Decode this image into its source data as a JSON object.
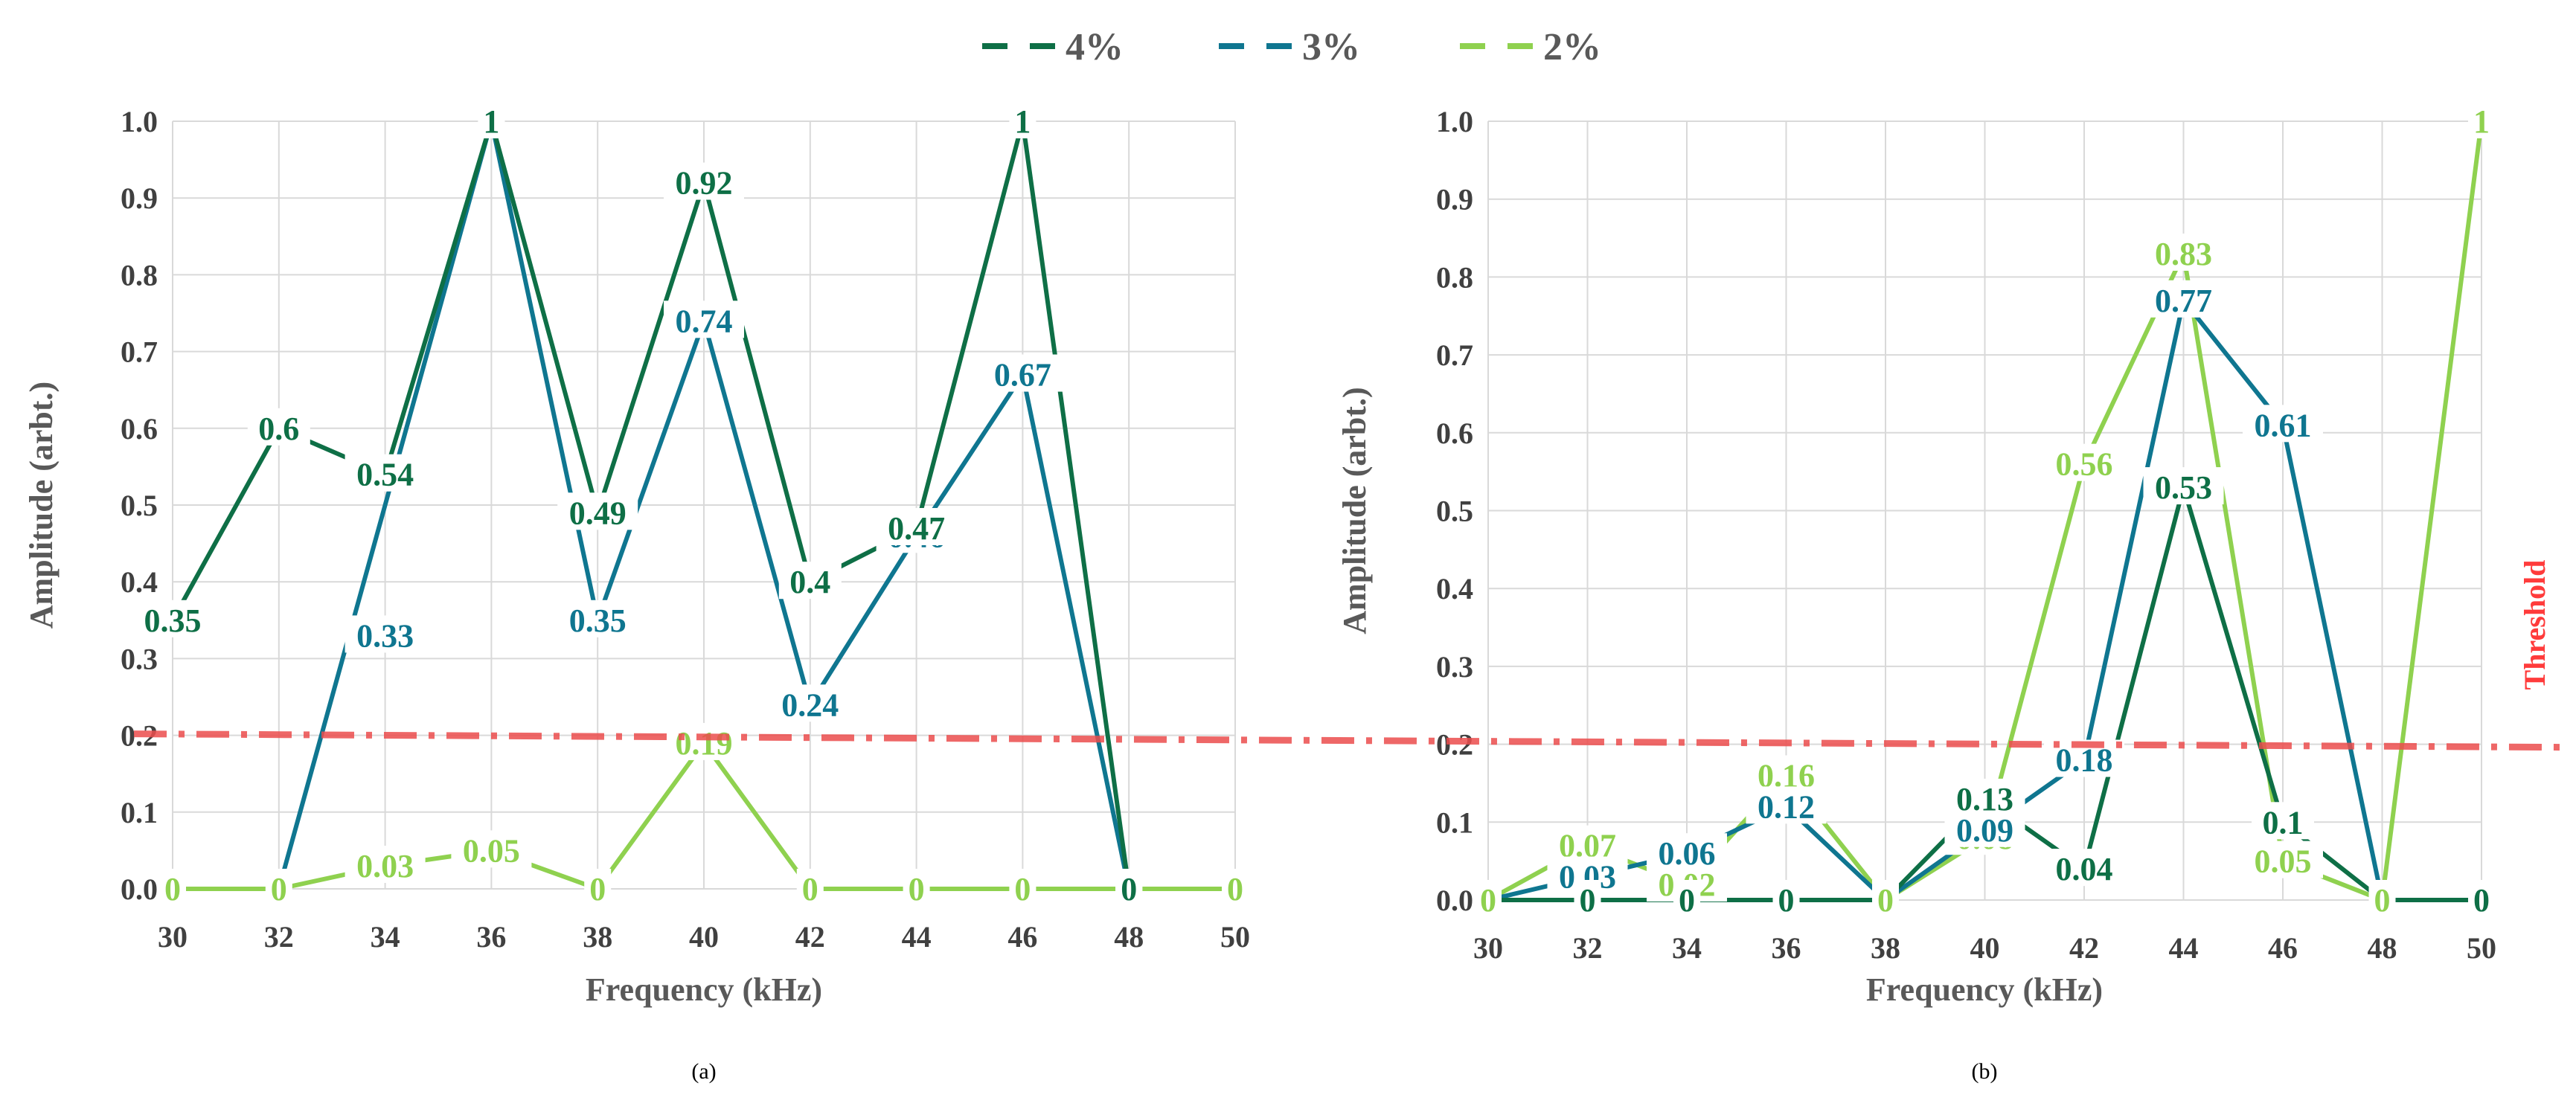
{
  "colors": {
    "s4": "#0e6f46",
    "s3": "#0f7690",
    "s2": "#8fd14f",
    "threshold": "#ec4d4d",
    "grid": "#d9d9d9"
  },
  "legend": [
    {
      "name": "4%",
      "color": "#0e6f46"
    },
    {
      "name": "3%",
      "color": "#0f7690"
    },
    {
      "name": "2%",
      "color": "#8fd14f"
    }
  ],
  "threshold": {
    "label": "Threshold",
    "value": 0.2
  },
  "chart_data": [
    {
      "type": "line",
      "panel_label": "(a)",
      "xlabel": "Frequency  (kHz)",
      "ylabel": "Amplitude  (arbt.)",
      "x_ticks": [
        "30",
        "32",
        "34",
        "36",
        "38",
        "40",
        "42",
        "44",
        "46",
        "48",
        "50"
      ],
      "y_ticks": [
        "0.0",
        "0.1",
        "0.2",
        "0.3",
        "0.4",
        "0.5",
        "0.6",
        "0.7",
        "0.8",
        "0.9",
        "1.0"
      ],
      "xlim": [
        30,
        50
      ],
      "ylim": [
        0,
        1
      ],
      "series": [
        {
          "name": "2%",
          "color": "#8fd14f",
          "x": [
            30,
            32,
            34,
            36,
            38,
            40,
            42,
            44,
            46,
            48,
            50
          ],
          "values": [
            0,
            0,
            0.03,
            0.05,
            0,
            0.19,
            0,
            0,
            0,
            0,
            0
          ],
          "labels": [
            "0",
            "0",
            "0.03",
            "0.05",
            "0",
            "0.19",
            "0",
            "0",
            "0",
            "0",
            "0"
          ]
        },
        {
          "name": "3%",
          "color": "#0f7690",
          "x": [
            32,
            36,
            38,
            40,
            42,
            44,
            46,
            48
          ],
          "values": [
            0,
            1,
            0.35,
            0.74,
            0.24,
            0.46,
            0.67,
            0
          ],
          "labels": [
            "",
            "1",
            "0.35",
            "0.74",
            "0.24",
            "0.46",
            "0.67",
            "0"
          ]
        },
        {
          "name": "4%",
          "color": "#0e6f46",
          "x": [
            30,
            32,
            34,
            36,
            38,
            40,
            42,
            44,
            46,
            48
          ],
          "values": [
            0.35,
            0.6,
            0.54,
            1,
            0.49,
            0.92,
            0.4,
            0.47,
            1,
            0
          ],
          "labels": [
            "0.35",
            "0.6",
            "0.54",
            "1",
            "0.49",
            "0.92",
            "0.4",
            "0.47",
            "1",
            "0"
          ]
        }
      ],
      "extra_labels": [
        {
          "text": "0.33",
          "x": 34,
          "y": 0.33,
          "color": "#0f7690"
        }
      ]
    },
    {
      "type": "line",
      "panel_label": "(b)",
      "xlabel": "Frequency  (kHz)",
      "ylabel": "Amplitude  (arbt.)",
      "x_ticks": [
        "30",
        "32",
        "34",
        "36",
        "38",
        "40",
        "42",
        "44",
        "46",
        "48",
        "50"
      ],
      "y_ticks": [
        "0.0",
        "0.1",
        "0.2",
        "0.3",
        "0.4",
        "0.5",
        "0.6",
        "0.7",
        "0.8",
        "0.9",
        "1.0"
      ],
      "xlim": [
        30,
        50
      ],
      "ylim": [
        0,
        1
      ],
      "series": [
        {
          "name": "2%",
          "color": "#8fd14f",
          "x": [
            30,
            32,
            34,
            36,
            38,
            40,
            42,
            44,
            46,
            48,
            50
          ],
          "values": [
            0,
            0.07,
            0.02,
            0.16,
            0,
            0.08,
            0.56,
            0.83,
            0.05,
            0,
            1
          ],
          "labels": [
            "0",
            "0.07",
            "0.02",
            "0.16",
            "0",
            "0.08",
            "0.56",
            "0.83",
            "0.05",
            "0",
            "1"
          ]
        },
        {
          "name": "3%",
          "color": "#0f7690",
          "x": [
            30,
            32,
            34,
            36,
            38,
            40,
            42,
            44,
            46,
            48
          ],
          "values": [
            0,
            0.03,
            0.06,
            0.12,
            0,
            0.09,
            0.18,
            0.77,
            0.61,
            0
          ],
          "labels": [
            "",
            "0.03",
            "0.06",
            "0.12",
            "",
            "0.09",
            "0.18",
            "0.77",
            "0.61",
            ""
          ]
        },
        {
          "name": "4%",
          "color": "#0e6f46",
          "x": [
            30,
            32,
            34,
            36,
            38,
            40,
            42,
            44,
            46,
            48,
            50
          ],
          "values": [
            0,
            0,
            0,
            0,
            0,
            0.13,
            0.04,
            0.53,
            0.1,
            0,
            0
          ],
          "labels": [
            "",
            "0",
            "0",
            "0",
            "",
            "0.13",
            "0.04",
            "0.53",
            "0.1",
            "",
            "0"
          ]
        }
      ],
      "extra_labels": []
    }
  ]
}
